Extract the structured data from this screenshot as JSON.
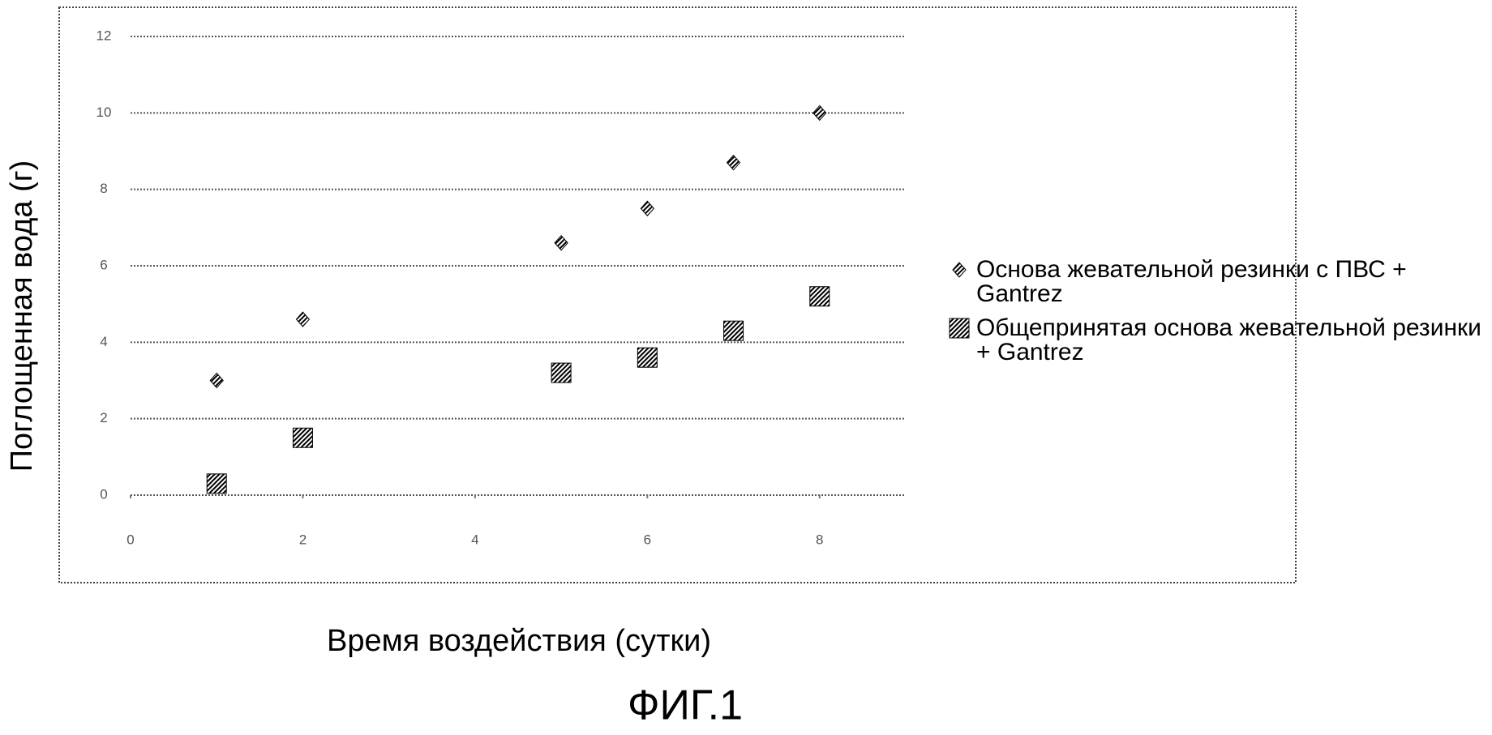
{
  "chart_data": {
    "type": "scatter",
    "caption": "ФИГ.1",
    "x_label": "Время воздействия (сутки)",
    "y_label": "Поглощенная вода (г)",
    "xlim": [
      0,
      9
    ],
    "xticks": [
      0,
      2,
      4,
      6,
      8
    ],
    "ylim": [
      0,
      12
    ],
    "yticks": [
      0,
      2,
      4,
      6,
      8,
      10,
      12
    ],
    "grid": true,
    "legend": "right",
    "series": [
      {
        "name": "Основа жевательной резинки с ПВС + Gantrez",
        "color": "#000000",
        "marker": "diamond",
        "x": [
          1,
          2,
          5,
          6,
          7,
          8
        ],
        "values": [
          3.0,
          4.6,
          6.6,
          7.5,
          8.7,
          10.0
        ]
      },
      {
        "name": "Общепринятая основа жевательной резинки + Gantrez",
        "color": "#000000",
        "marker": "square",
        "x": [
          1,
          2,
          5,
          6,
          7,
          8
        ],
        "values": [
          0.3,
          1.5,
          3.2,
          3.6,
          4.3,
          5.2
        ]
      }
    ]
  }
}
